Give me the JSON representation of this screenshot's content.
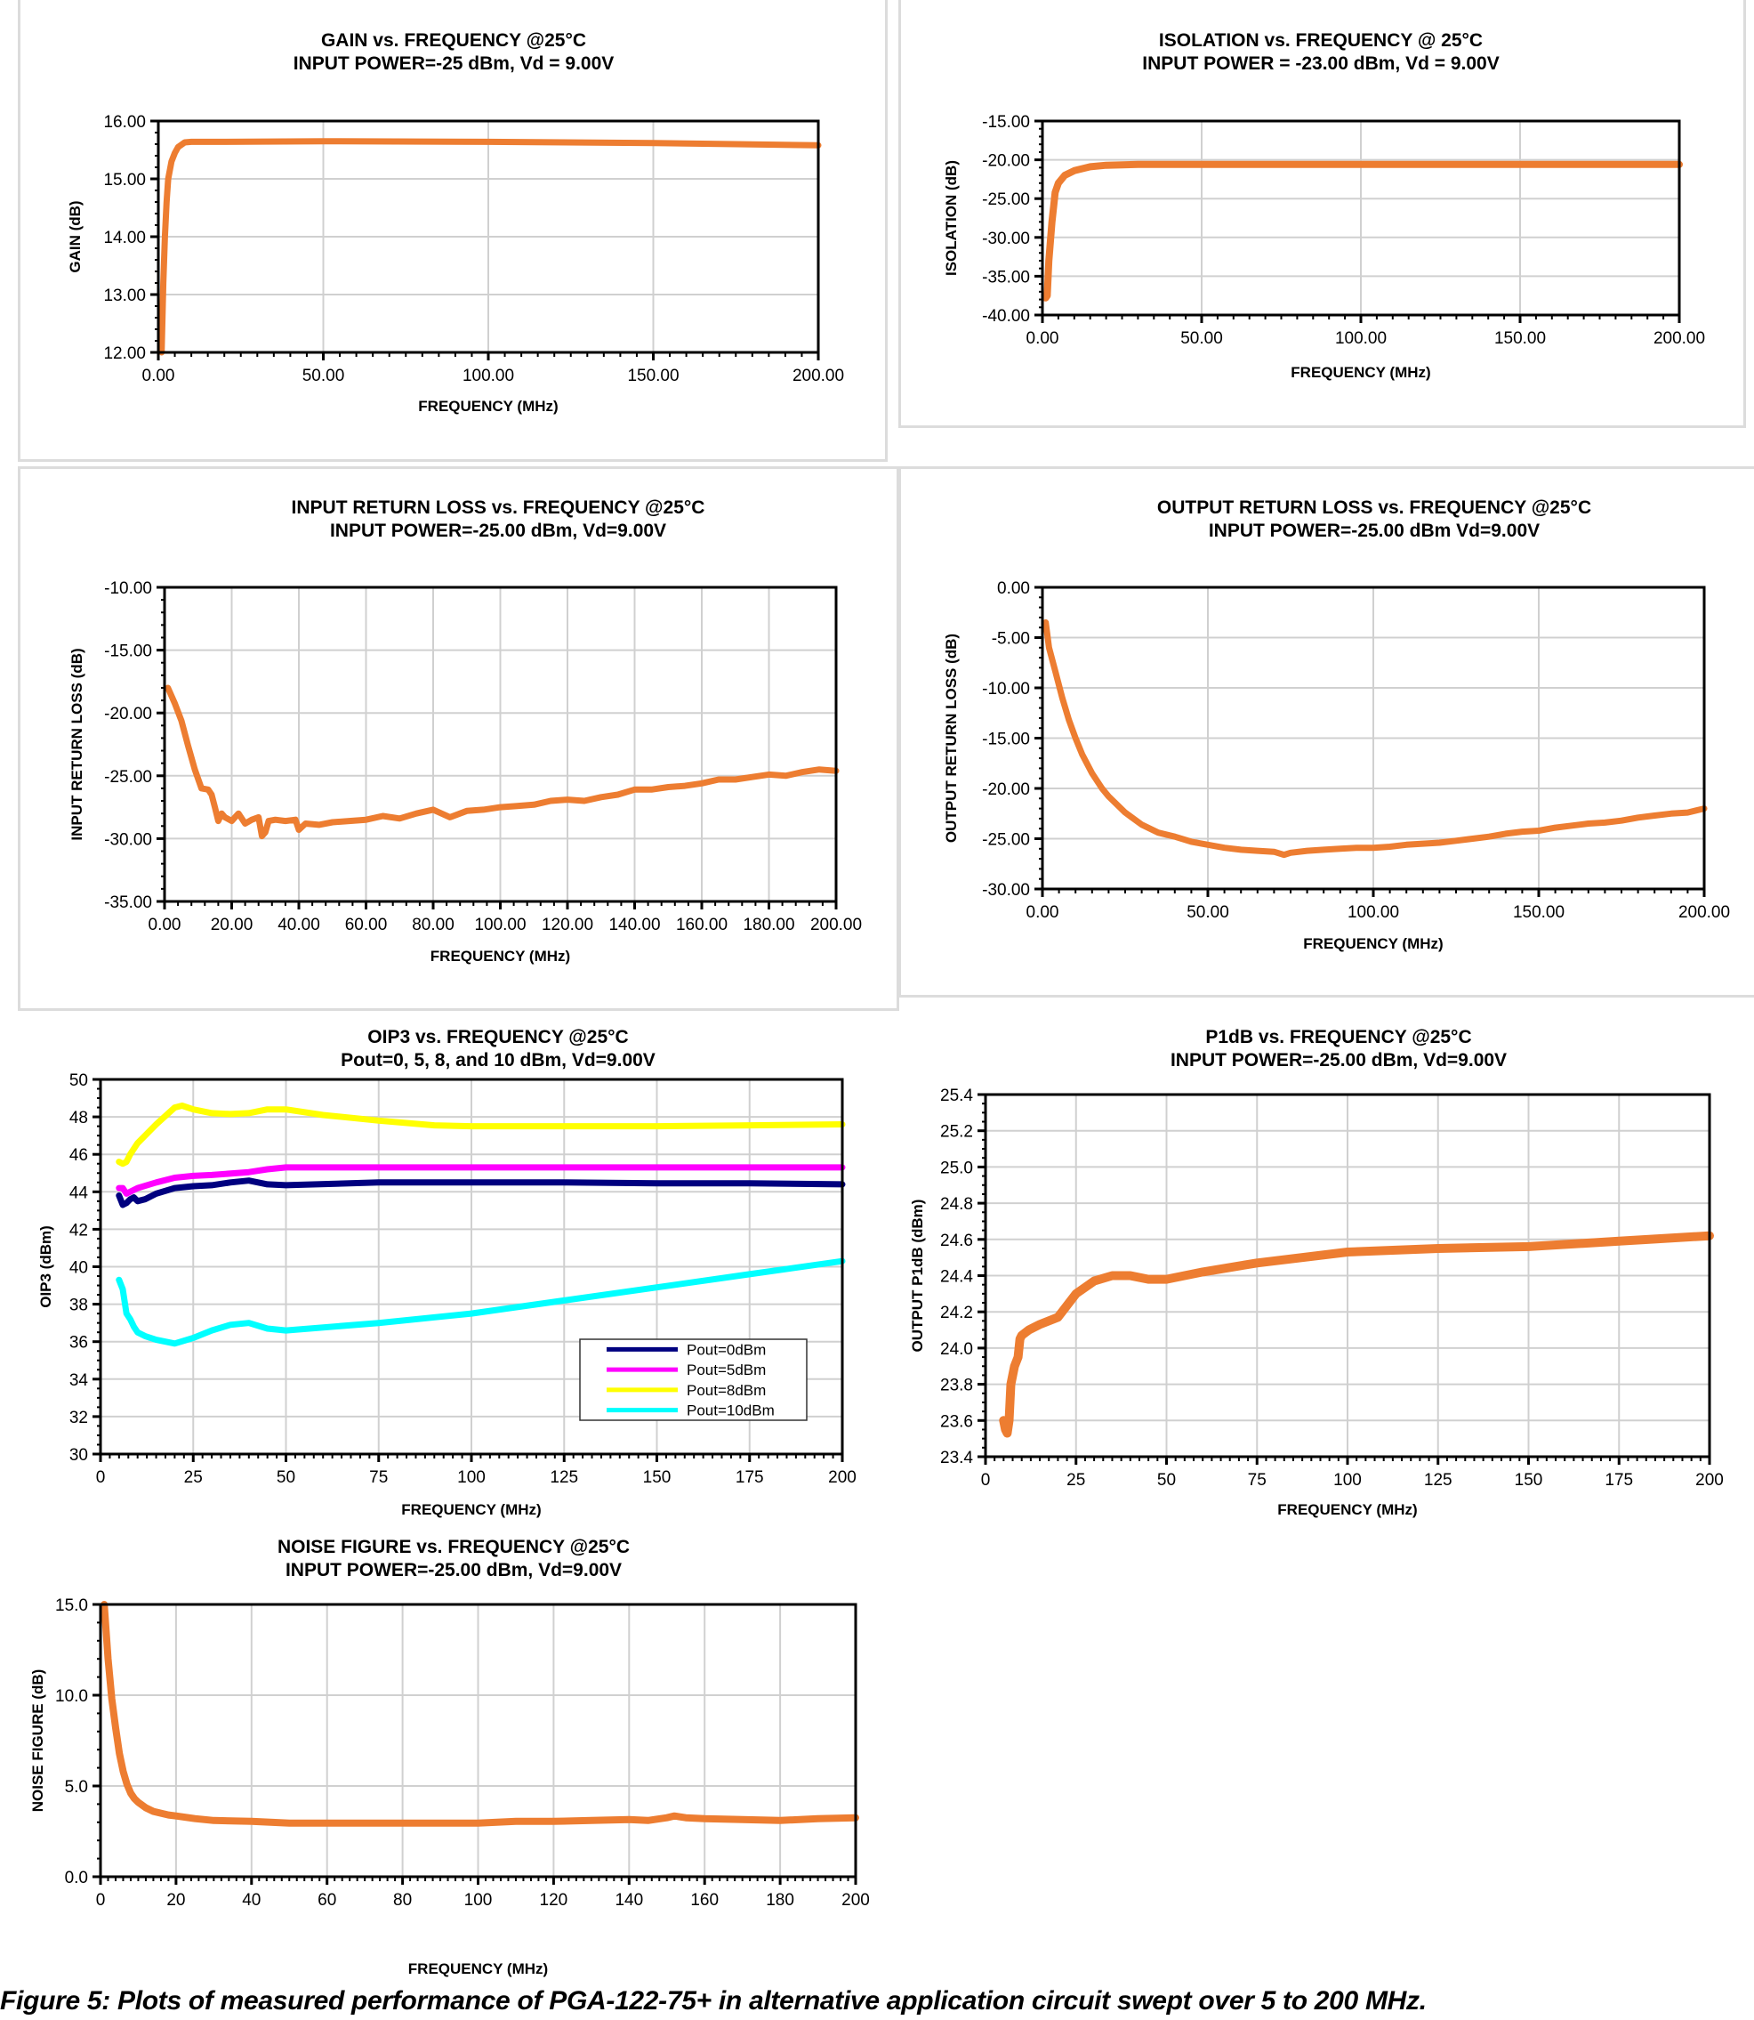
{
  "caption": "Figure 5: Plots of measured performance of PGA-122-75+ in alternative application circuit swept over 5 to 200 MHz.",
  "colors": {
    "trace": "#ED7D31",
    "grid": "#d0d0d0",
    "panel_border": "#dcdcdc"
  },
  "chart_data": [
    {
      "id": "gain",
      "type": "line",
      "title": "GAIN vs. FREQUENCY @25°C",
      "subtitle": "INPUT POWER=-25 dBm, Vd = 9.00V",
      "xlabel": "FREQUENCY (MHz)",
      "ylabel": "GAIN (dB)",
      "xlim": [
        0,
        200
      ],
      "ylim": [
        12,
        16
      ],
      "xticks": [
        0,
        50,
        100,
        150,
        200
      ],
      "xtick_labels": [
        "0.00",
        "50.00",
        "100.00",
        "150.00",
        "200.00"
      ],
      "yticks": [
        12,
        13,
        14,
        15,
        16
      ],
      "ytick_labels": [
        "12.00",
        "13.00",
        "14.00",
        "15.00",
        "16.00"
      ],
      "grid": true,
      "series": [
        {
          "name": "Gain",
          "color": "#ED7D31",
          "x": [
            1,
            1.5,
            2,
            2.5,
            3,
            4,
            5,
            6,
            8,
            10,
            20,
            50,
            100,
            150,
            175,
            200
          ],
          "y": [
            12.0,
            13.2,
            14.0,
            14.6,
            15.0,
            15.3,
            15.45,
            15.55,
            15.63,
            15.64,
            15.64,
            15.65,
            15.64,
            15.62,
            15.6,
            15.58
          ]
        }
      ]
    },
    {
      "id": "isolation",
      "type": "line",
      "title": "ISOLATION vs. FREQUENCY @ 25°C",
      "subtitle": "INPUT POWER = -23.00 dBm, Vd = 9.00V",
      "xlabel": "FREQUENCY (MHz)",
      "ylabel": "ISOLATION (dB)",
      "xlim": [
        0,
        200
      ],
      "ylim": [
        -40,
        -15
      ],
      "xticks": [
        0,
        50,
        100,
        150,
        200
      ],
      "xtick_labels": [
        "0.00",
        "50.00",
        "100.00",
        "150.00",
        "200.00"
      ],
      "yticks": [
        -40,
        -35,
        -30,
        -25,
        -20,
        -15
      ],
      "ytick_labels": [
        "-40.00",
        "-35.00",
        "-30.00",
        "-25.00",
        "-20.00",
        "-15.00"
      ],
      "grid": true,
      "series": [
        {
          "name": "Isolation",
          "color": "#ED7D31",
          "x": [
            1,
            1.5,
            2,
            3,
            4,
            5,
            7,
            10,
            15,
            20,
            30,
            50,
            100,
            150,
            200
          ],
          "y": [
            -37.8,
            -37.5,
            -33,
            -28,
            -24.2,
            -23.0,
            -22.0,
            -21.4,
            -20.9,
            -20.7,
            -20.6,
            -20.6,
            -20.6,
            -20.6,
            -20.6
          ]
        }
      ]
    },
    {
      "id": "input-return-loss",
      "type": "line",
      "title": "INPUT RETURN LOSS vs. FREQUENCY @25°C",
      "subtitle": "INPUT POWER=-25.00 dBm, Vd=9.00V",
      "xlabel": "FREQUENCY (MHz)",
      "ylabel": "INPUT RETURN LOSS (dB)",
      "xlim": [
        0,
        200
      ],
      "ylim": [
        -35,
        -10
      ],
      "xticks": [
        0,
        20,
        40,
        60,
        80,
        100,
        120,
        140,
        160,
        180,
        200
      ],
      "xtick_labels": [
        "0.00",
        "20.00",
        "40.00",
        "60.00",
        "80.00",
        "100.00",
        "120.00",
        "140.00",
        "160.00",
        "180.00",
        "200.00"
      ],
      "yticks": [
        -35,
        -30,
        -25,
        -20,
        -15,
        -10
      ],
      "ytick_labels": [
        "-35.00",
        "-30.00",
        "-25.00",
        "-20.00",
        "-15.00",
        "-10.00"
      ],
      "grid": true,
      "series": [
        {
          "name": "Input Return Loss",
          "color": "#ED7D31",
          "x": [
            1,
            3,
            5,
            7,
            9,
            11,
            13,
            14,
            15,
            16,
            17,
            18,
            20,
            22,
            24,
            26,
            28,
            29,
            30,
            31,
            33,
            36,
            39,
            40,
            42,
            46,
            50,
            55,
            60,
            65,
            70,
            75,
            80,
            85,
            90,
            95,
            100,
            105,
            110,
            115,
            120,
            125,
            130,
            135,
            140,
            145,
            150,
            155,
            160,
            165,
            170,
            175,
            180,
            185,
            190,
            195,
            200
          ],
          "y": [
            -18.0,
            -19.2,
            -20.6,
            -22.6,
            -24.5,
            -26.0,
            -26.1,
            -26.5,
            -27.5,
            -28.6,
            -28.0,
            -28.3,
            -28.6,
            -28.0,
            -28.8,
            -28.5,
            -28.3,
            -29.8,
            -29.5,
            -28.6,
            -28.5,
            -28.6,
            -28.5,
            -29.3,
            -28.8,
            -28.9,
            -28.7,
            -28.6,
            -28.5,
            -28.2,
            -28.4,
            -28.0,
            -27.7,
            -28.3,
            -27.8,
            -27.7,
            -27.5,
            -27.4,
            -27.3,
            -27.0,
            -26.9,
            -27.0,
            -26.7,
            -26.5,
            -26.1,
            -26.1,
            -25.9,
            -25.8,
            -25.6,
            -25.3,
            -25.3,
            -25.1,
            -24.9,
            -25.0,
            -24.7,
            -24.5,
            -24.6
          ]
        }
      ]
    },
    {
      "id": "output-return-loss",
      "type": "line",
      "title": "OUTPUT RETURN LOSS vs. FREQUENCY @25°C",
      "subtitle": "INPUT POWER=-25.00 dBm Vd=9.00V",
      "xlabel": "FREQUENCY (MHz)",
      "ylabel": "OUTPUT RETURN LOSS (dB)",
      "xlim": [
        0,
        200
      ],
      "ylim": [
        -30,
        0
      ],
      "xticks": [
        0,
        50,
        100,
        150,
        200
      ],
      "xtick_labels": [
        "0.00",
        "50.00",
        "100.00",
        "150.00",
        "200.00"
      ],
      "yticks": [
        -30,
        -25,
        -20,
        -15,
        -10,
        -5,
        0
      ],
      "ytick_labels": [
        "-30.00",
        "-25.00",
        "-20.00",
        "-15.00",
        "-10.00",
        "-5.00",
        "0.00"
      ],
      "grid": true,
      "series": [
        {
          "name": "Output Return Loss",
          "color": "#ED7D31",
          "x": [
            1,
            2,
            4,
            6,
            8,
            10,
            12,
            15,
            18,
            20,
            25,
            30,
            35,
            40,
            45,
            50,
            55,
            60,
            65,
            70,
            73,
            75,
            80,
            85,
            90,
            95,
            100,
            105,
            110,
            115,
            120,
            125,
            130,
            135,
            140,
            145,
            150,
            155,
            160,
            165,
            170,
            175,
            180,
            185,
            190,
            195,
            200
          ],
          "y": [
            -3.5,
            -6.0,
            -8.5,
            -11.0,
            -13.2,
            -15.0,
            -16.6,
            -18.5,
            -20.0,
            -20.8,
            -22.4,
            -23.6,
            -24.4,
            -24.8,
            -25.3,
            -25.6,
            -25.9,
            -26.1,
            -26.2,
            -26.3,
            -26.6,
            -26.4,
            -26.2,
            -26.1,
            -26.0,
            -25.9,
            -25.9,
            -25.8,
            -25.6,
            -25.5,
            -25.4,
            -25.2,
            -25.0,
            -24.8,
            -24.5,
            -24.3,
            -24.2,
            -23.9,
            -23.7,
            -23.5,
            -23.4,
            -23.2,
            -22.9,
            -22.7,
            -22.5,
            -22.4,
            -22.0
          ]
        }
      ]
    },
    {
      "id": "oip3",
      "type": "line",
      "title": "OIP3 vs. FREQUENCY @25°C",
      "subtitle": "Pout=0, 5, 8, and 10 dBm, Vd=9.00V",
      "xlabel": "FREQUENCY (MHz)",
      "ylabel": "OIP3 (dBm)",
      "xlim": [
        0,
        200
      ],
      "ylim": [
        30,
        50
      ],
      "xticks": [
        0,
        25,
        50,
        75,
        100,
        125,
        150,
        175,
        200
      ],
      "xtick_labels": [
        "0",
        "25",
        "50",
        "75",
        "100",
        "125",
        "150",
        "175",
        "200"
      ],
      "yticks": [
        30,
        32,
        34,
        36,
        38,
        40,
        42,
        44,
        46,
        48,
        50
      ],
      "ytick_labels": [
        "30",
        "32",
        "34",
        "36",
        "38",
        "40",
        "42",
        "44",
        "46",
        "48",
        "50"
      ],
      "grid": true,
      "legend": "bottom-right",
      "series": [
        {
          "name": "Pout=0dBm",
          "color": "#00007F",
          "x": [
            5,
            6,
            7,
            8,
            9,
            10,
            12,
            15,
            20,
            25,
            30,
            35,
            40,
            45,
            50,
            75,
            100,
            125,
            150,
            175,
            200
          ],
          "y": [
            43.8,
            43.3,
            43.4,
            43.6,
            43.7,
            43.5,
            43.6,
            43.9,
            44.2,
            44.3,
            44.35,
            44.5,
            44.6,
            44.4,
            44.35,
            44.5,
            44.5,
            44.5,
            44.45,
            44.45,
            44.4
          ]
        },
        {
          "name": "Pout=5dBm",
          "color": "#FF00FF",
          "x": [
            5,
            6,
            7,
            8,
            10,
            15,
            20,
            25,
            30,
            40,
            45,
            50,
            75,
            100,
            125,
            150,
            175,
            200
          ],
          "y": [
            44.2,
            44.2,
            43.9,
            44.0,
            44.2,
            44.5,
            44.75,
            44.85,
            44.9,
            45.05,
            45.2,
            45.3,
            45.3,
            45.3,
            45.3,
            45.3,
            45.3,
            45.3
          ]
        },
        {
          "name": "Pout=8dBm",
          "color": "#FFFF00",
          "x": [
            5,
            6,
            7,
            8,
            10,
            15,
            20,
            22,
            25,
            30,
            35,
            40,
            45,
            50,
            60,
            75,
            90,
            100,
            125,
            150,
            175,
            200
          ],
          "y": [
            45.6,
            45.5,
            45.6,
            46.0,
            46.6,
            47.6,
            48.5,
            48.6,
            48.4,
            48.2,
            48.15,
            48.2,
            48.4,
            48.4,
            48.1,
            47.8,
            47.55,
            47.5,
            47.5,
            47.5,
            47.55,
            47.6
          ]
        },
        {
          "name": "Pout=10dBm",
          "color": "#00FFFF",
          "x": [
            5,
            6,
            7,
            8,
            9,
            10,
            12,
            15,
            20,
            25,
            30,
            35,
            40,
            45,
            50,
            75,
            100,
            125,
            150,
            175,
            200
          ],
          "y": [
            39.3,
            38.8,
            37.5,
            37.2,
            36.8,
            36.5,
            36.3,
            36.1,
            35.9,
            36.2,
            36.6,
            36.9,
            37.0,
            36.7,
            36.6,
            37.0,
            37.5,
            38.2,
            38.9,
            39.6,
            40.3
          ]
        }
      ]
    },
    {
      "id": "p1db",
      "type": "line",
      "title": "P1dB vs. FREQUENCY @25°C",
      "subtitle": "INPUT POWER=-25.00 dBm, Vd=9.00V",
      "xlabel": "FREQUENCY (MHz)",
      "ylabel": "OUTPUT P1dB (dBm)",
      "xlim": [
        0,
        200
      ],
      "ylim": [
        23.4,
        25.4
      ],
      "xticks": [
        0,
        25,
        50,
        75,
        100,
        125,
        150,
        175,
        200
      ],
      "xtick_labels": [
        "0",
        "25",
        "50",
        "75",
        "100",
        "125",
        "150",
        "175",
        "200"
      ],
      "yticks": [
        23.4,
        23.6,
        23.8,
        24.0,
        24.2,
        24.4,
        24.6,
        24.8,
        25.0,
        25.2,
        25.4
      ],
      "ytick_labels": [
        "23.4",
        "23.6",
        "23.8",
        "24.0",
        "24.2",
        "24.4",
        "24.6",
        "24.8",
        "25.0",
        "25.2",
        "25.4"
      ],
      "grid": true,
      "series": [
        {
          "name": "P1dB",
          "color": "#ED7D31",
          "x": [
            5,
            5.5,
            6,
            6.5,
            7,
            8,
            9,
            9.5,
            10,
            12,
            15,
            20,
            25,
            30,
            35,
            40,
            45,
            50,
            60,
            75,
            100,
            125,
            150,
            175,
            200
          ],
          "y": [
            23.6,
            23.55,
            23.53,
            23.6,
            23.8,
            23.9,
            23.95,
            24.05,
            24.07,
            24.1,
            24.13,
            24.17,
            24.3,
            24.37,
            24.4,
            24.4,
            24.38,
            24.38,
            24.42,
            24.47,
            24.53,
            24.55,
            24.56,
            24.59,
            24.62
          ]
        }
      ]
    },
    {
      "id": "noise-figure",
      "type": "line",
      "title": "NOISE FIGURE vs. FREQUENCY @25°C",
      "subtitle": "INPUT POWER=-25.00 dBm, Vd=9.00V",
      "xlabel": "FREQUENCY (MHz)",
      "ylabel": "NOISE FIGURE (dB)",
      "xlim": [
        0,
        200
      ],
      "ylim": [
        0,
        15
      ],
      "xticks": [
        0,
        20,
        40,
        60,
        80,
        100,
        120,
        140,
        160,
        180,
        200
      ],
      "xtick_labels": [
        "0",
        "20",
        "40",
        "60",
        "80",
        "100",
        "120",
        "140",
        "160",
        "180",
        "200"
      ],
      "yticks": [
        0,
        5,
        10,
        15
      ],
      "ytick_labels": [
        "0.0",
        "5.0",
        "10.0",
        "15.0"
      ],
      "grid": true,
      "series": [
        {
          "name": "Noise Figure",
          "color": "#ED7D31",
          "x": [
            1,
            2,
            3,
            4,
            5,
            6,
            7,
            8,
            9,
            10,
            12,
            14,
            16,
            18,
            20,
            25,
            30,
            40,
            50,
            60,
            70,
            80,
            90,
            100,
            110,
            120,
            130,
            140,
            145,
            150,
            152,
            155,
            160,
            170,
            180,
            190,
            200
          ],
          "y": [
            15.0,
            12.0,
            9.8,
            8.2,
            6.8,
            5.8,
            5.1,
            4.6,
            4.3,
            4.1,
            3.8,
            3.6,
            3.5,
            3.4,
            3.35,
            3.2,
            3.1,
            3.05,
            2.95,
            2.95,
            2.95,
            2.95,
            2.95,
            2.95,
            3.05,
            3.05,
            3.1,
            3.15,
            3.1,
            3.25,
            3.35,
            3.25,
            3.2,
            3.15,
            3.1,
            3.2,
            3.25
          ]
        }
      ]
    }
  ]
}
